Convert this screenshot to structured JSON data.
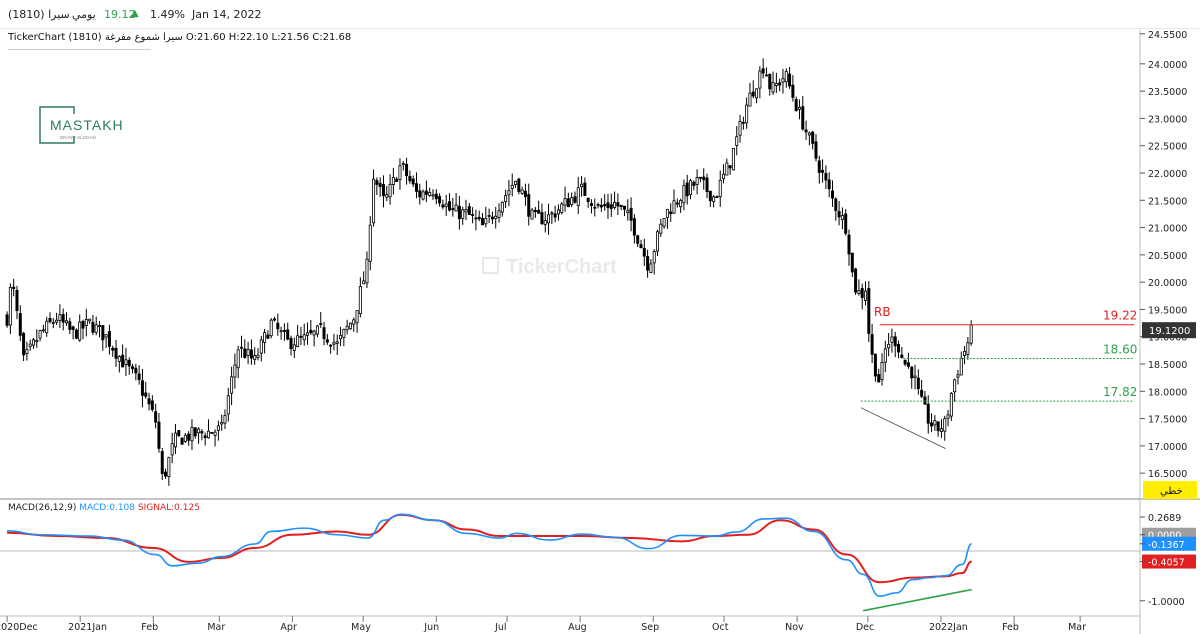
{
  "header": {
    "symbol": "(1810) سيرا",
    "period": "يومي",
    "price": "19.12",
    "change_arrow": "▲",
    "change_pct": "1.49%",
    "date": "Jan 14, 2022"
  },
  "ohlc_text": "TickerChart (1810) سيرا شموع مفرغة  O:21.60  H:22.10  L:21.56  C:21.68",
  "logo": {
    "name": "MASTAKH",
    "sub": "BRAND SLOGAN"
  },
  "watermark": "TickerChart",
  "macd_legend": {
    "name": "MACD(26,12,9)",
    "macd": "MACD:0.108",
    "signal": "SIGNAL:0.125"
  },
  "colors": {
    "up": "#000000",
    "down": "#000000",
    "macd": "#1e90ff",
    "signal": "#e02020",
    "resistance": "#e02020",
    "support": "#2fa14a",
    "trend_macd": "#2fa14a",
    "trend_price": "#444444"
  },
  "chart_data": {
    "type": "candlestick",
    "x_ticks": [
      "2020Dec",
      "2021Jan",
      "Feb",
      "Mar",
      "Apr",
      "May",
      "Jun",
      "Jul",
      "Aug",
      "Sep",
      "Oct",
      "Nov",
      "Dec",
      "2022Jan",
      "Feb",
      "Mar"
    ],
    "price_axis": {
      "ticks": [
        "24.5500",
        "24.0000",
        "23.5000",
        "23.0000",
        "22.5000",
        "22.0000",
        "21.5000",
        "21.0000",
        "20.5000",
        "20.0000",
        "19.5000",
        "19.0000",
        "18.5000",
        "18.0000",
        "17.5000",
        "17.0000",
        "16.5000"
      ],
      "ylim": [
        16.1,
        24.62
      ]
    },
    "last_price_label": "19.1200",
    "axis_badge": "خطي",
    "levels": [
      {
        "label": "19.22",
        "value": 19.22,
        "kind": "resistance"
      },
      {
        "label": "18.60",
        "value": 18.6,
        "kind": "support"
      },
      {
        "label": "17.82",
        "value": 17.82,
        "kind": "support"
      }
    ],
    "annotation": "RB",
    "price_path": [
      [
        "2020-12-01",
        19.35
      ],
      [
        "2020-12-03",
        20.05
      ],
      [
        "2020-12-08",
        18.55
      ],
      [
        "2020-12-15",
        19.05
      ],
      [
        "2020-12-22",
        19.35
      ],
      [
        "2020-12-29",
        19.05
      ],
      [
        "2021-01-05",
        19.25
      ],
      [
        "2021-01-12",
        19.0
      ],
      [
        "2021-01-19",
        18.55
      ],
      [
        "2021-01-26",
        18.15
      ],
      [
        "2021-02-02",
        17.45
      ],
      [
        "2021-02-05",
        16.35
      ],
      [
        "2021-02-10",
        17.1
      ],
      [
        "2021-02-17",
        17.2
      ],
      [
        "2021-02-24",
        17.25
      ],
      [
        "2021-03-02",
        17.3
      ],
      [
        "2021-03-09",
        18.8
      ],
      [
        "2021-03-16",
        18.55
      ],
      [
        "2021-03-23",
        19.25
      ],
      [
        "2021-03-30",
        18.9
      ],
      [
        "2021-04-06",
        18.95
      ],
      [
        "2021-04-13",
        19.1
      ],
      [
        "2021-04-20",
        18.85
      ],
      [
        "2021-04-27",
        19.35
      ],
      [
        "2021-05-03",
        20.35
      ],
      [
        "2021-05-05",
        22.0
      ],
      [
        "2021-05-10",
        21.45
      ],
      [
        "2021-05-17",
        22.15
      ],
      [
        "2021-05-24",
        21.6
      ],
      [
        "2021-05-31",
        21.7
      ],
      [
        "2021-06-07",
        21.3
      ],
      [
        "2021-06-14",
        21.25
      ],
      [
        "2021-06-21",
        21.0
      ],
      [
        "2021-06-28",
        21.45
      ],
      [
        "2021-07-05",
        21.9
      ],
      [
        "2021-07-12",
        21.15
      ],
      [
        "2021-07-19",
        21.2
      ],
      [
        "2021-07-26",
        21.45
      ],
      [
        "2021-08-02",
        21.7
      ],
      [
        "2021-08-09",
        21.35
      ],
      [
        "2021-08-16",
        21.45
      ],
      [
        "2021-08-23",
        21.1
      ],
      [
        "2021-08-30",
        20.3
      ],
      [
        "2021-09-06",
        21.25
      ],
      [
        "2021-09-13",
        21.6
      ],
      [
        "2021-09-20",
        21.85
      ],
      [
        "2021-09-27",
        21.55
      ],
      [
        "2021-10-04",
        22.25
      ],
      [
        "2021-10-11",
        23.3
      ],
      [
        "2021-10-18",
        24.0
      ],
      [
        "2021-10-21",
        23.5
      ],
      [
        "2021-10-27",
        23.8
      ],
      [
        "2021-11-01",
        23.2
      ],
      [
        "2021-11-08",
        22.4
      ],
      [
        "2021-11-15",
        21.6
      ],
      [
        "2021-11-22",
        21.0
      ],
      [
        "2021-11-25",
        19.95
      ],
      [
        "2021-11-28",
        19.75
      ],
      [
        "2021-11-30",
        19.9
      ],
      [
        "2021-12-02",
        18.75
      ],
      [
        "2021-12-06",
        18.15
      ],
      [
        "2021-12-09",
        18.9
      ],
      [
        "2021-12-13",
        18.95
      ],
      [
        "2021-12-16",
        18.55
      ],
      [
        "2021-12-20",
        18.35
      ],
      [
        "2021-12-23",
        17.85
      ],
      [
        "2021-12-27",
        17.45
      ],
      [
        "2021-12-30",
        17.3
      ],
      [
        "2022-01-03",
        17.4
      ],
      [
        "2022-01-06",
        18.1
      ],
      [
        "2022-01-10",
        18.65
      ],
      [
        "2022-01-13",
        18.95
      ],
      [
        "2022-01-14",
        19.12
      ]
    ],
    "price_trendline": {
      "from": [
        "2021-11-28",
        17.7
      ],
      "to": [
        "2022-01-03",
        16.95
      ]
    },
    "macd": {
      "axis_ticks": [
        "0.2689",
        "0.0000",
        "-0.1367",
        "-0.4057",
        "-1.0000"
      ],
      "ylim": [
        -1.2,
        0.42
      ],
      "macd_series": [
        [
          "2020-12-01",
          0.06
        ],
        [
          "2020-12-15",
          0.0
        ],
        [
          "2021-01-05",
          -0.02
        ],
        [
          "2021-01-19",
          -0.08
        ],
        [
          "2021-02-02",
          -0.3
        ],
        [
          "2021-02-09",
          -0.47
        ],
        [
          "2021-02-20",
          -0.43
        ],
        [
          "2021-03-02",
          -0.33
        ],
        [
          "2021-03-16",
          -0.14
        ],
        [
          "2021-03-23",
          0.05
        ],
        [
          "2021-04-06",
          0.1
        ],
        [
          "2021-04-20",
          0.0
        ],
        [
          "2021-05-03",
          -0.05
        ],
        [
          "2021-05-10",
          0.22
        ],
        [
          "2021-05-17",
          0.31
        ],
        [
          "2021-05-31",
          0.22
        ],
        [
          "2021-06-14",
          0.02
        ],
        [
          "2021-06-28",
          -0.05
        ],
        [
          "2021-07-05",
          0.02
        ],
        [
          "2021-07-19",
          -0.08
        ],
        [
          "2021-08-02",
          0.01
        ],
        [
          "2021-08-16",
          -0.04
        ],
        [
          "2021-08-30",
          -0.21
        ],
        [
          "2021-09-13",
          -0.01
        ],
        [
          "2021-09-27",
          -0.02
        ],
        [
          "2021-10-06",
          0.04
        ],
        [
          "2021-10-18",
          0.24
        ],
        [
          "2021-10-27",
          0.25
        ],
        [
          "2021-11-08",
          0.05
        ],
        [
          "2021-11-22",
          -0.38
        ],
        [
          "2021-11-29",
          -0.6
        ],
        [
          "2021-12-06",
          -0.93
        ],
        [
          "2021-12-13",
          -0.88
        ],
        [
          "2021-12-20",
          -0.68
        ],
        [
          "2021-12-27",
          -0.65
        ],
        [
          "2022-01-03",
          -0.62
        ],
        [
          "2022-01-10",
          -0.45
        ],
        [
          "2022-01-14",
          -0.1367
        ]
      ],
      "signal_series": [
        [
          "2020-12-01",
          0.03
        ],
        [
          "2020-12-22",
          -0.02
        ],
        [
          "2021-01-12",
          -0.05
        ],
        [
          "2021-02-01",
          -0.2
        ],
        [
          "2021-02-16",
          -0.41
        ],
        [
          "2021-03-02",
          -0.35
        ],
        [
          "2021-03-16",
          -0.2
        ],
        [
          "2021-04-01",
          0.0
        ],
        [
          "2021-04-20",
          0.05
        ],
        [
          "2021-05-03",
          0.0
        ],
        [
          "2021-05-17",
          0.3
        ],
        [
          "2021-05-31",
          0.22
        ],
        [
          "2021-06-14",
          0.08
        ],
        [
          "2021-06-28",
          -0.02
        ],
        [
          "2021-07-12",
          -0.02
        ],
        [
          "2021-08-02",
          -0.02
        ],
        [
          "2021-08-23",
          -0.05
        ],
        [
          "2021-09-13",
          -0.1
        ],
        [
          "2021-09-27",
          -0.02
        ],
        [
          "2021-10-11",
          0.0
        ],
        [
          "2021-10-25",
          0.22
        ],
        [
          "2021-11-08",
          0.08
        ],
        [
          "2021-11-22",
          -0.3
        ],
        [
          "2021-12-06",
          -0.72
        ],
        [
          "2021-12-20",
          -0.65
        ],
        [
          "2022-01-03",
          -0.63
        ],
        [
          "2022-01-10",
          -0.58
        ],
        [
          "2022-01-14",
          -0.4057
        ]
      ],
      "trendline": {
        "from": [
          "2021-11-29",
          -1.15
        ],
        "to": [
          "2022-01-14",
          -0.83
        ]
      }
    }
  }
}
